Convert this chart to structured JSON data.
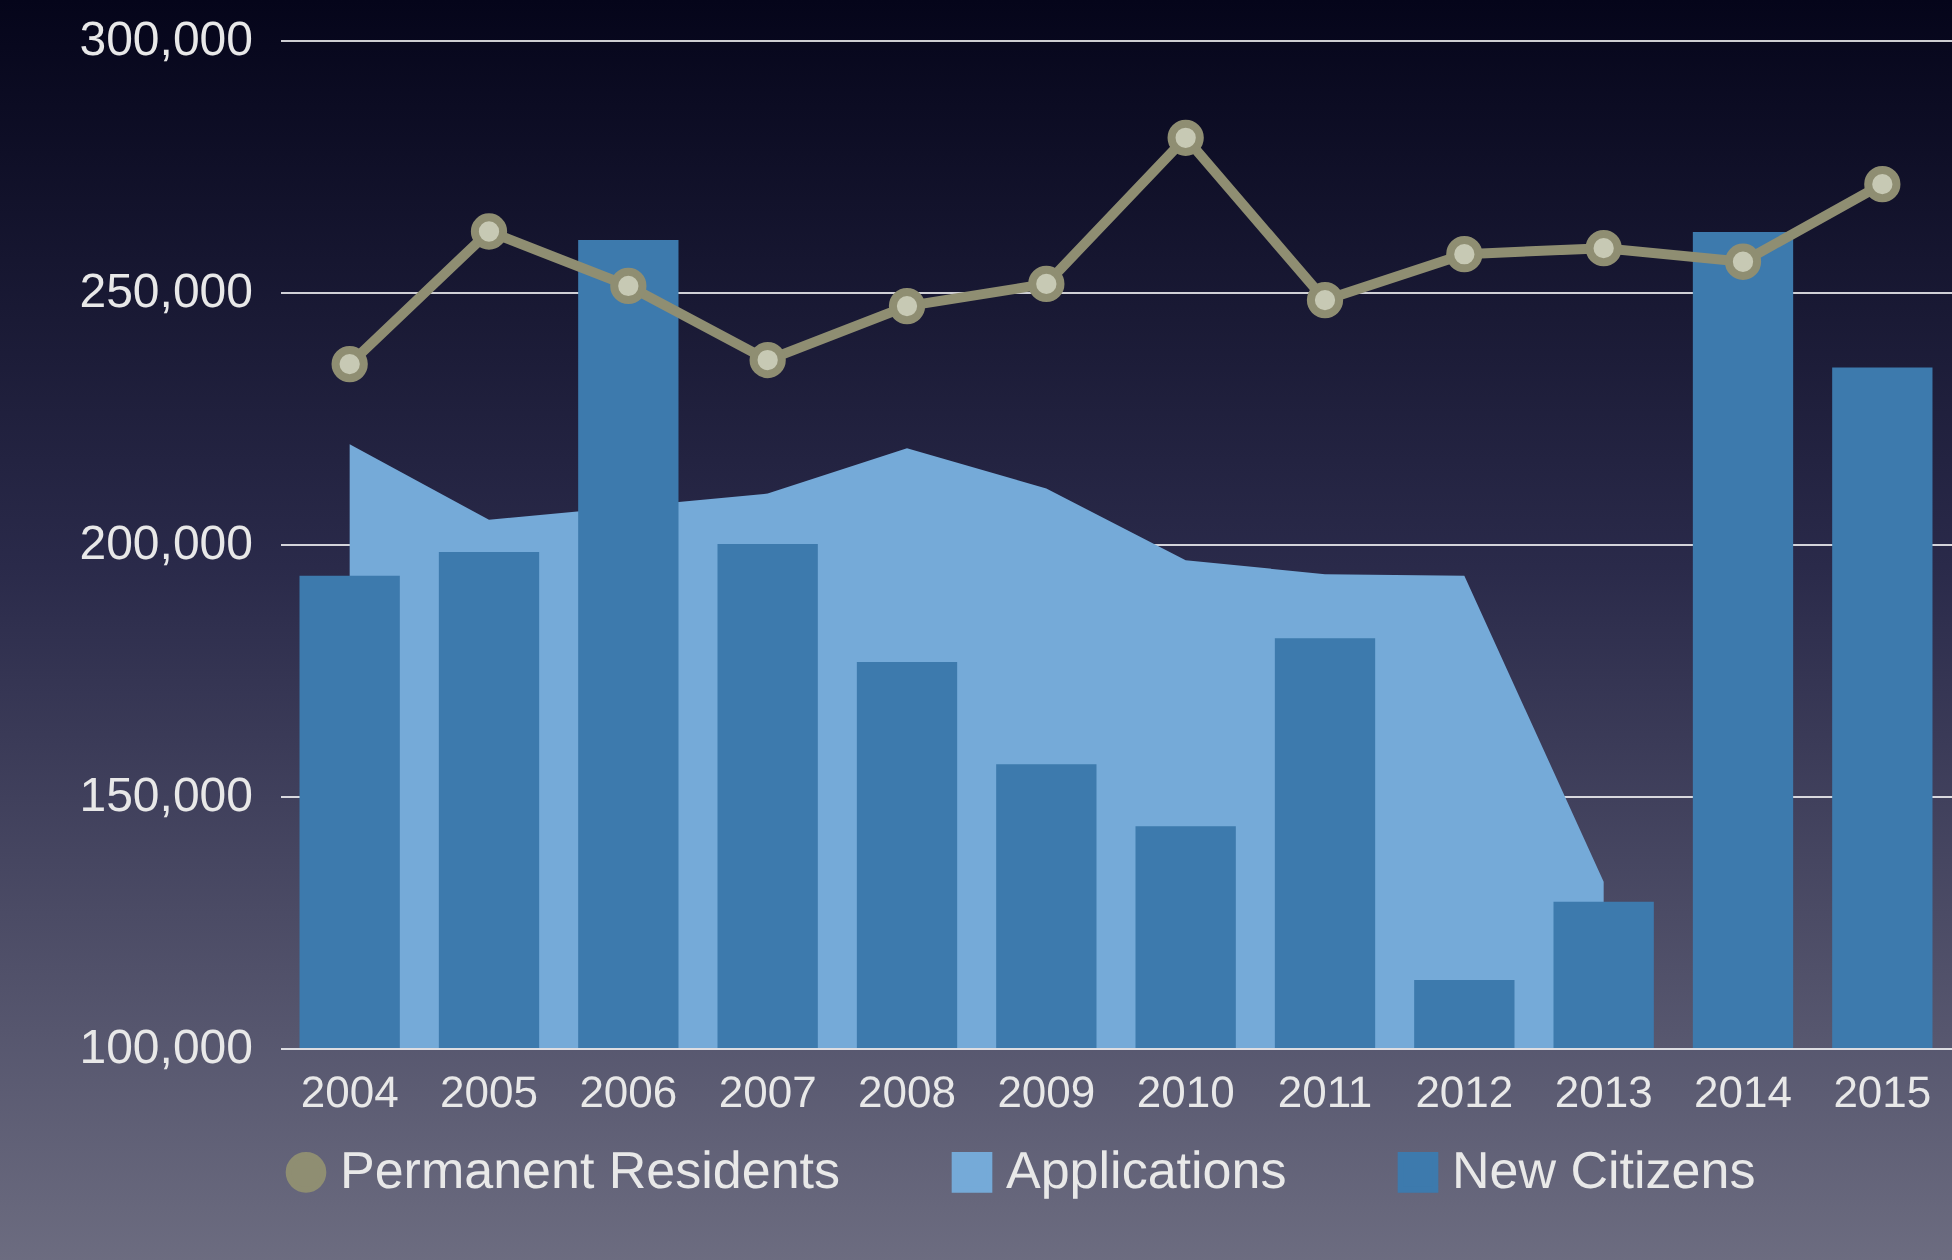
{
  "chart_data": {
    "type": "bar",
    "categories": [
      "2004",
      "2005",
      "2006",
      "2007",
      "2008",
      "2009",
      "2010",
      "2011",
      "2012",
      "2013",
      "2014",
      "2015"
    ],
    "series": [
      {
        "name": "Permanent Residents",
        "type": "line",
        "marker": "circle",
        "color": "#8f8e72",
        "values": [
          235700,
          262000,
          251200,
          236500,
          247200,
          251600,
          280600,
          248400,
          257500,
          258700,
          256000,
          271400
        ]
      },
      {
        "name": "Applications",
        "type": "area",
        "color": "#75aad8",
        "values": [
          219800,
          204800,
          null,
          210000,
          219000,
          211000,
          196800,
          194000,
          193700,
          133000,
          null,
          null
        ]
      },
      {
        "name": "New Citizens",
        "type": "bar",
        "color": "#3d7aad",
        "values": [
          193700,
          198400,
          260300,
          200000,
          176600,
          156300,
          144000,
          181300,
          113500,
          129000,
          261900,
          235000
        ]
      }
    ],
    "ylim": [
      100000,
      300000
    ],
    "yticks": [
      {
        "value": 100000,
        "label": "100,000"
      },
      {
        "value": 150000,
        "label": "150,000"
      },
      {
        "value": 200000,
        "label": "200,000"
      },
      {
        "value": 250000,
        "label": "250,000"
      },
      {
        "value": 300000,
        "label": "300,000"
      }
    ],
    "grid": "y",
    "legend": "bottom"
  }
}
